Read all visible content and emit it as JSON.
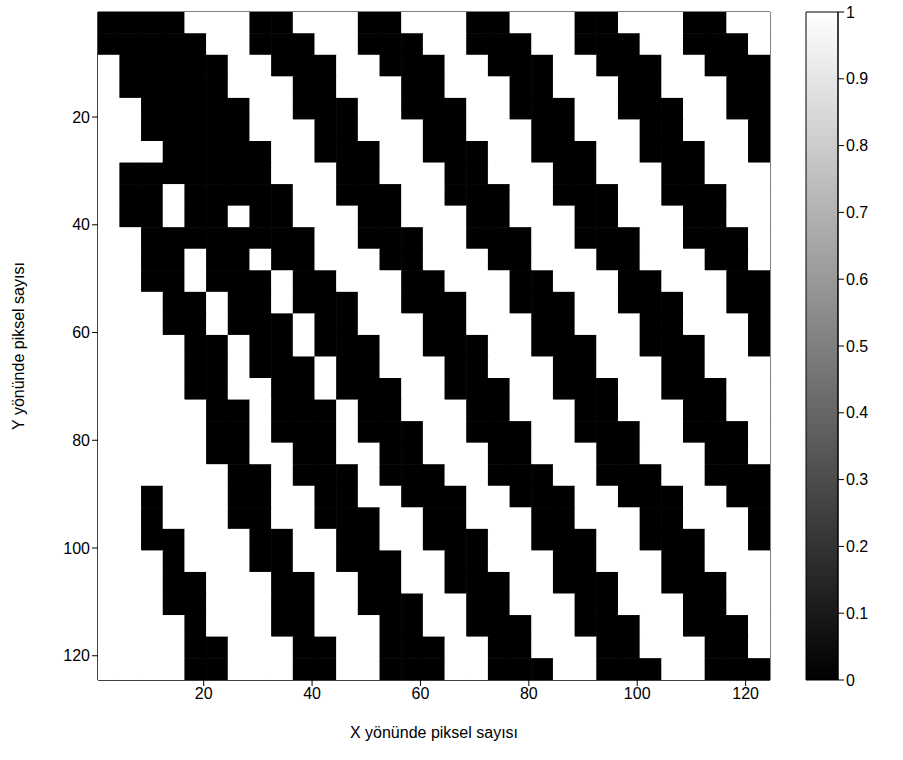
{
  "chart_data": {
    "type": "heatmap",
    "xlabel": "X yönünde piksel sayısı",
    "ylabel": "Y yönünde piksel sayısı",
    "x": [
      2.5,
      6.5,
      10.5,
      14.5,
      18.5,
      22.5,
      26.5,
      30.5,
      34.5,
      38.5,
      42.5,
      46.5,
      50.5,
      54.5,
      58.5,
      62.5,
      66.5,
      70.5,
      74.5,
      78.5,
      82.5,
      86.5,
      90.5,
      94.5,
      98.5,
      102.5,
      106.5,
      110.5,
      114.5,
      118.5,
      122.5
    ],
    "y": [
      2.5,
      6.5,
      10.5,
      14.5,
      18.5,
      22.5,
      26.5,
      30.5,
      34.5,
      38.5,
      42.5,
      46.5,
      50.5,
      54.5,
      58.5,
      62.5,
      66.5,
      70.5,
      74.5,
      78.5,
      82.5,
      86.5,
      90.5,
      94.5,
      98.5,
      102.5,
      106.5,
      110.5,
      114.5,
      118.5,
      122.5
    ],
    "xlim": [
      0.5,
      124.5
    ],
    "ylim": [
      0.5,
      124.5
    ],
    "xticks": [
      20,
      40,
      60,
      80,
      100,
      120
    ],
    "yticks": [
      20,
      40,
      60,
      80,
      100,
      120
    ],
    "colorbar": {
      "range": [
        0,
        1
      ],
      "ticks": [
        0,
        0.1,
        0.2,
        0.3,
        0.4,
        0.5,
        0.6,
        0.7,
        0.8,
        0.9,
        1
      ]
    },
    "cells": [
      [
        0,
        0,
        0,
        0,
        1,
        1,
        1,
        0,
        0,
        1,
        1,
        1,
        0,
        0,
        1,
        1,
        1,
        0,
        0,
        1,
        1,
        1,
        0,
        0,
        1,
        1,
        1,
        0,
        0,
        1,
        1
      ],
      [
        0,
        0,
        0,
        0,
        0,
        1,
        1,
        0,
        0,
        0,
        1,
        1,
        0,
        0,
        0,
        1,
        1,
        0,
        0,
        0,
        1,
        1,
        0,
        0,
        0,
        1,
        1,
        0,
        0,
        0,
        1
      ],
      [
        1,
        0,
        0,
        0,
        0,
        0,
        1,
        1,
        0,
        0,
        0,
        1,
        1,
        0,
        0,
        0,
        1,
        1,
        0,
        0,
        0,
        1,
        1,
        0,
        0,
        0,
        1,
        1,
        0,
        0,
        0
      ],
      [
        1,
        0,
        0,
        0,
        0,
        0,
        1,
        1,
        1,
        0,
        0,
        1,
        1,
        1,
        0,
        0,
        1,
        1,
        1,
        0,
        0,
        1,
        1,
        1,
        0,
        0,
        1,
        1,
        1,
        0,
        0
      ],
      [
        1,
        1,
        0,
        0,
        0,
        0,
        0,
        1,
        1,
        0,
        0,
        0,
        1,
        1,
        0,
        0,
        0,
        1,
        1,
        0,
        0,
        0,
        1,
        1,
        0,
        0,
        0,
        1,
        1,
        0,
        0
      ],
      [
        1,
        1,
        0,
        0,
        0,
        0,
        0,
        1,
        1,
        1,
        0,
        0,
        1,
        1,
        1,
        0,
        0,
        1,
        1,
        1,
        0,
        0,
        1,
        1,
        1,
        0,
        0,
        1,
        1,
        1,
        0
      ],
      [
        1,
        1,
        1,
        0,
        0,
        0,
        0,
        0,
        1,
        1,
        0,
        0,
        0,
        1,
        1,
        0,
        0,
        0,
        1,
        1,
        0,
        0,
        0,
        1,
        1,
        0,
        0,
        0,
        1,
        1,
        0
      ],
      [
        1,
        0,
        0,
        0,
        0,
        0,
        0,
        0,
        1,
        1,
        1,
        0,
        0,
        1,
        1,
        1,
        0,
        0,
        1,
        1,
        1,
        0,
        0,
        1,
        1,
        1,
        0,
        0,
        1,
        1,
        1
      ],
      [
        1,
        0,
        0,
        1,
        0,
        0,
        0,
        0,
        0,
        1,
        1,
        0,
        0,
        0,
        1,
        1,
        0,
        0,
        0,
        1,
        1,
        0,
        0,
        0,
        1,
        1,
        0,
        0,
        0,
        1,
        1
      ],
      [
        1,
        0,
        0,
        1,
        0,
        0,
        1,
        0,
        0,
        1,
        1,
        1,
        0,
        0,
        1,
        1,
        1,
        0,
        0,
        1,
        1,
        1,
        0,
        0,
        1,
        1,
        1,
        0,
        0,
        1,
        1
      ],
      [
        1,
        1,
        0,
        0,
        0,
        0,
        0,
        0,
        0,
        0,
        1,
        1,
        0,
        0,
        0,
        1,
        1,
        0,
        0,
        0,
        1,
        1,
        0,
        0,
        0,
        1,
        1,
        0,
        0,
        0,
        1
      ],
      [
        1,
        1,
        0,
        0,
        1,
        0,
        0,
        1,
        0,
        0,
        1,
        1,
        1,
        0,
        0,
        1,
        1,
        1,
        0,
        0,
        1,
        1,
        1,
        0,
        0,
        1,
        1,
        1,
        0,
        0,
        1
      ],
      [
        1,
        1,
        0,
        0,
        1,
        0,
        0,
        0,
        1,
        0,
        0,
        1,
        1,
        1,
        0,
        0,
        1,
        1,
        1,
        0,
        0,
        1,
        1,
        1,
        0,
        0,
        1,
        1,
        1,
        0,
        0
      ],
      [
        1,
        1,
        1,
        0,
        0,
        1,
        0,
        0,
        1,
        0,
        0,
        0,
        1,
        1,
        0,
        0,
        0,
        1,
        1,
        0,
        0,
        0,
        1,
        1,
        0,
        0,
        0,
        1,
        1,
        0,
        0
      ],
      [
        1,
        1,
        1,
        0,
        0,
        1,
        0,
        0,
        0,
        1,
        0,
        0,
        1,
        1,
        1,
        0,
        0,
        1,
        1,
        1,
        0,
        0,
        1,
        1,
        1,
        0,
        0,
        1,
        1,
        1,
        0
      ],
      [
        1,
        1,
        1,
        1,
        0,
        0,
        1,
        0,
        0,
        1,
        0,
        0,
        0,
        1,
        1,
        0,
        0,
        0,
        1,
        1,
        0,
        0,
        0,
        1,
        1,
        0,
        0,
        0,
        1,
        1,
        0
      ],
      [
        1,
        1,
        1,
        1,
        0,
        0,
        1,
        0,
        0,
        0,
        1,
        0,
        0,
        1,
        1,
        1,
        0,
        0,
        1,
        1,
        1,
        0,
        0,
        1,
        1,
        1,
        0,
        0,
        1,
        1,
        1
      ],
      [
        1,
        1,
        1,
        1,
        0,
        0,
        1,
        1,
        0,
        0,
        1,
        0,
        0,
        0,
        1,
        1,
        0,
        0,
        0,
        1,
        1,
        0,
        0,
        0,
        1,
        1,
        0,
        0,
        0,
        1,
        1
      ],
      [
        1,
        1,
        1,
        1,
        1,
        0,
        0,
        1,
        0,
        0,
        0,
        1,
        0,
        0,
        1,
        1,
        1,
        0,
        0,
        1,
        1,
        1,
        0,
        0,
        1,
        1,
        1,
        0,
        0,
        1,
        1
      ],
      [
        1,
        1,
        1,
        1,
        1,
        0,
        0,
        1,
        0,
        0,
        0,
        1,
        0,
        0,
        0,
        1,
        1,
        0,
        0,
        0,
        1,
        1,
        0,
        0,
        0,
        1,
        1,
        0,
        0,
        0,
        1
      ],
      [
        1,
        1,
        1,
        1,
        1,
        0,
        0,
        1,
        1,
        0,
        0,
        1,
        1,
        0,
        0,
        1,
        1,
        1,
        0,
        0,
        1,
        1,
        1,
        0,
        0,
        1,
        1,
        1,
        0,
        0,
        1
      ],
      [
        1,
        1,
        1,
        1,
        1,
        1,
        0,
        0,
        1,
        0,
        0,
        0,
        1,
        0,
        0,
        0,
        1,
        1,
        0,
        0,
        0,
        1,
        1,
        0,
        0,
        0,
        1,
        1,
        0,
        0,
        0
      ],
      [
        1,
        1,
        0,
        1,
        1,
        1,
        0,
        0,
        1,
        1,
        0,
        0,
        1,
        1,
        0,
        0,
        0,
        1,
        1,
        0,
        0,
        0,
        1,
        1,
        0,
        0,
        0,
        1,
        1,
        0,
        0
      ],
      [
        1,
        1,
        0,
        1,
        1,
        1,
        0,
        0,
        1,
        1,
        0,
        0,
        0,
        1,
        1,
        0,
        0,
        1,
        1,
        1,
        0,
        0,
        1,
        1,
        1,
        0,
        0,
        1,
        1,
        1,
        0
      ],
      [
        1,
        1,
        0,
        0,
        1,
        1,
        1,
        0,
        0,
        1,
        1,
        0,
        0,
        1,
        1,
        0,
        0,
        0,
        1,
        1,
        0,
        0,
        0,
        1,
        1,
        0,
        0,
        0,
        1,
        1,
        0
      ],
      [
        1,
        1,
        1,
        0,
        1,
        1,
        1,
        0,
        0,
        1,
        1,
        0,
        0,
        0,
        1,
        1,
        0,
        0,
        1,
        1,
        1,
        0,
        0,
        1,
        1,
        1,
        0,
        0,
        1,
        1,
        1
      ],
      [
        1,
        1,
        1,
        0,
        0,
        1,
        1,
        1,
        0,
        0,
        1,
        1,
        0,
        0,
        1,
        1,
        0,
        0,
        0,
        1,
        1,
        0,
        0,
        0,
        1,
        1,
        0,
        0,
        0,
        1,
        1
      ],
      [
        1,
        1,
        1,
        0,
        0,
        1,
        1,
        1,
        0,
        0,
        1,
        1,
        0,
        0,
        0,
        1,
        1,
        0,
        0,
        1,
        1,
        1,
        0,
        0,
        1,
        1,
        1,
        0,
        0,
        1,
        1
      ],
      [
        1,
        1,
        1,
        1,
        0,
        1,
        1,
        1,
        0,
        0,
        1,
        1,
        1,
        0,
        0,
        1,
        1,
        0,
        0,
        0,
        1,
        1,
        0,
        0,
        0,
        1,
        1,
        0,
        0,
        0,
        1
      ],
      [
        1,
        1,
        1,
        1,
        0,
        0,
        1,
        1,
        1,
        0,
        0,
        1,
        1,
        0,
        0,
        0,
        1,
        1,
        0,
        0,
        1,
        1,
        1,
        0,
        0,
        1,
        1,
        1,
        0,
        0,
        1
      ],
      [
        1,
        1,
        1,
        1,
        0,
        0,
        1,
        1,
        1,
        0,
        0,
        1,
        1,
        0,
        0,
        0,
        1,
        1,
        0,
        0,
        0,
        1,
        1,
        0,
        0,
        0,
        1,
        1,
        0,
        0,
        0
      ]
    ]
  }
}
